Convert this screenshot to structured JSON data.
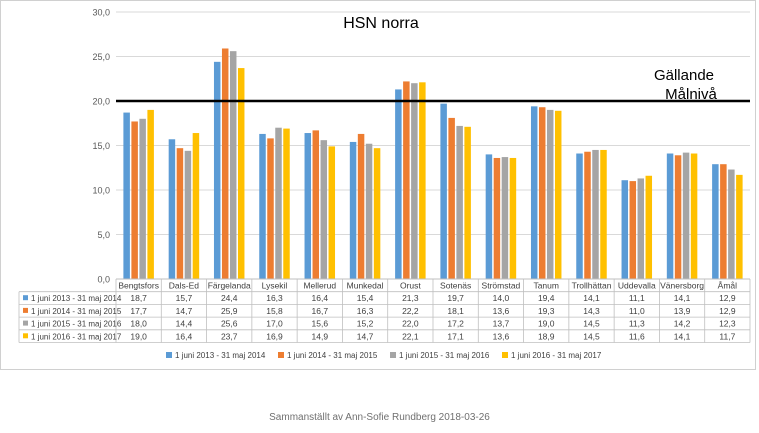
{
  "chart_data": {
    "type": "bar",
    "title": "HSN norra",
    "target_label_line1": "Gällande",
    "target_label_line2": "Målnivå",
    "target_value": 20.0,
    "ylim": [
      0,
      30
    ],
    "yticks": [
      "0,0",
      "5,0",
      "10,0",
      "15,0",
      "20,0",
      "25,0",
      "30,0"
    ],
    "ytick_values": [
      0,
      5,
      10,
      15,
      20,
      25,
      30
    ],
    "categories": [
      "Bengtsfors",
      "Dals-Ed",
      "Färgelanda",
      "Lysekil",
      "Mellerud",
      "Munkedal",
      "Orust",
      "Sotenäs",
      "Strömstad",
      "Tanum",
      "Trollhättan",
      "Uddevalla",
      "Vänersborg",
      "Åmål"
    ],
    "grid": true,
    "legend_placement": "bottom",
    "series": [
      {
        "name": "1 juni 2013 - 31 maj 2014",
        "color": "#5B9BD5",
        "values": [
          18.7,
          15.7,
          24.4,
          16.3,
          16.4,
          15.4,
          21.3,
          19.7,
          14.0,
          19.4,
          14.1,
          11.1,
          14.1,
          12.9
        ],
        "labels": [
          "18,7",
          "15,7",
          "24,4",
          "16,3",
          "16,4",
          "15,4",
          "21,3",
          "19,7",
          "14,0",
          "19,4",
          "14,1",
          "11,1",
          "14,1",
          "12,9"
        ]
      },
      {
        "name": "1 juni 2014 - 31 maj 2015",
        "color": "#ED7D31",
        "values": [
          17.7,
          14.7,
          25.9,
          15.8,
          16.7,
          16.3,
          22.2,
          18.1,
          13.6,
          19.3,
          14.3,
          11.0,
          13.9,
          12.9
        ],
        "labels": [
          "17,7",
          "14,7",
          "25,9",
          "15,8",
          "16,7",
          "16,3",
          "22,2",
          "18,1",
          "13,6",
          "19,3",
          "14,3",
          "11,0",
          "13,9",
          "12,9"
        ]
      },
      {
        "name": "1 juni 2015 - 31 maj 2016",
        "color": "#A5A5A5",
        "values": [
          18.0,
          14.4,
          25.6,
          17.0,
          15.6,
          15.2,
          22.0,
          17.2,
          13.7,
          19.0,
          14.5,
          11.3,
          14.2,
          12.3
        ],
        "labels": [
          "18,0",
          "14,4",
          "25,6",
          "17,0",
          "15,6",
          "15,2",
          "22,0",
          "17,2",
          "13,7",
          "19,0",
          "14,5",
          "11,3",
          "14,2",
          "12,3"
        ]
      },
      {
        "name": "1 juni 2016 - 31 maj 2017",
        "color": "#FFC000",
        "values": [
          19.0,
          16.4,
          23.7,
          16.9,
          14.9,
          14.7,
          22.1,
          17.1,
          13.6,
          18.9,
          14.5,
          11.6,
          14.1,
          11.7
        ],
        "labels": [
          "19,0",
          "16,4",
          "23,7",
          "16,9",
          "14,9",
          "14,7",
          "22,1",
          "17,1",
          "13,6",
          "18,9",
          "14,5",
          "11,6",
          "14,1",
          "11,7"
        ]
      }
    ]
  },
  "footer": {
    "credit": "Sammanställt av Ann-Sofie Rundberg 2018-03-26"
  }
}
